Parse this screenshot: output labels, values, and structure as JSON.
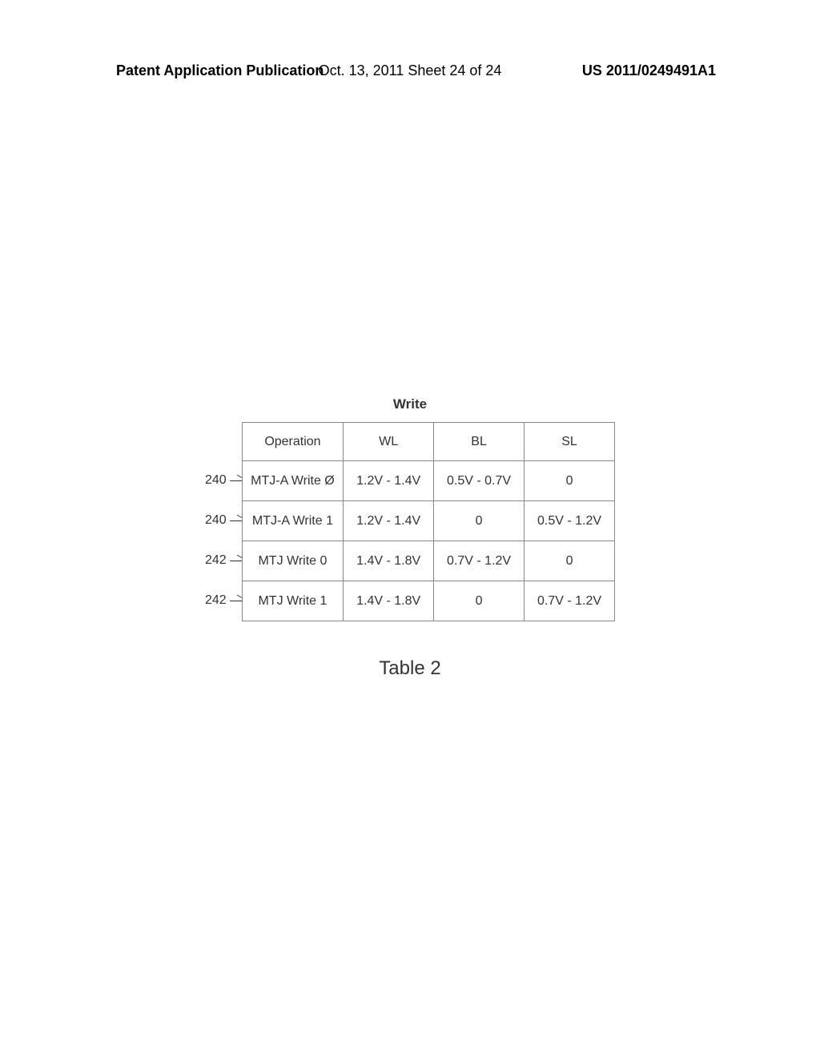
{
  "header": {
    "left": "Patent Application Publication",
    "center": "Oct. 13, 2011  Sheet 24 of 24",
    "right": "US 2011/0249491A1"
  },
  "table": {
    "title": "Write",
    "caption": "Table 2",
    "columns": [
      "Operation",
      "WL",
      "BL",
      "SL"
    ],
    "rowLabels": [
      "240",
      "240",
      "242",
      "242"
    ],
    "rows": [
      [
        "MTJ-A Write Ø",
        "1.2V - 1.4V",
        "0.5V - 0.7V",
        "0"
      ],
      [
        "MTJ-A Write 1",
        "1.2V - 1.4V",
        "0",
        "0.5V - 1.2V"
      ],
      [
        "MTJ Write 0",
        "1.4V - 1.8V",
        "0.7V - 1.2V",
        "0"
      ],
      [
        "MTJ Write 1",
        "1.4V - 1.8V",
        "0",
        "0.7V - 1.2V"
      ]
    ]
  }
}
